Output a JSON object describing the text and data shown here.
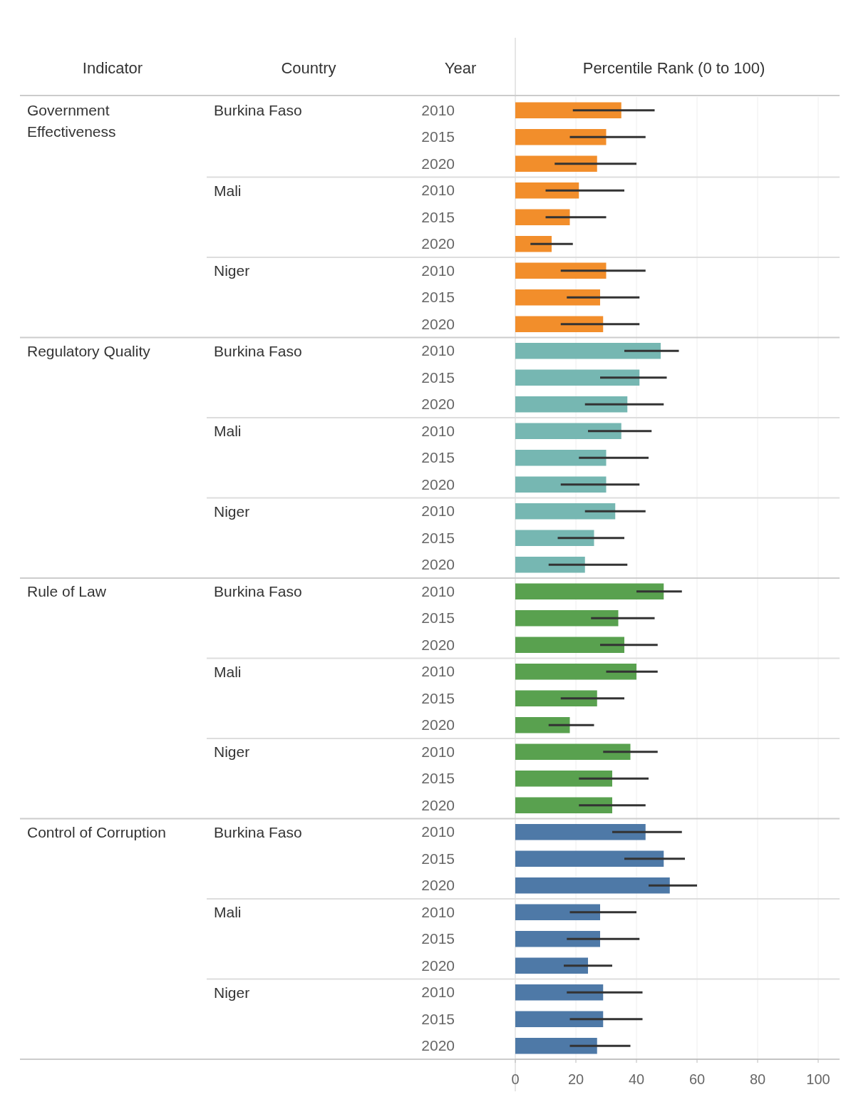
{
  "chart_data": {
    "type": "bar",
    "orientation": "horizontal",
    "xlabel": "Percentile Rank (0 to 100)",
    "annotations": [
      "Indicator",
      "Country",
      "Year",
      "Government Effectiveness",
      "Burkina Faso",
      "Mali",
      "Niger",
      "Regulatory Quality",
      "Burkina Faso",
      "Mali",
      "Niger",
      "Rule of Law",
      "Burkina Faso",
      "Mali",
      "Niger",
      "Control of Corruption",
      "Burkina Faso",
      "Mali",
      "Niger"
    ],
    "categories": [
      "2010",
      "2015",
      "2020",
      "2010",
      "2015",
      "2020",
      "2010",
      "2015",
      "2020",
      "2010",
      "2015",
      "2020",
      "2010",
      "2015",
      "2020",
      "2010",
      "2015",
      "2020",
      "2010",
      "2015",
      "2020",
      "2010",
      "2015",
      "2020",
      "2010",
      "2015",
      "2020",
      "2010",
      "2015",
      "2020",
      "2010",
      "2015",
      "2020",
      "2010",
      "2015",
      "2020"
    ],
    "values": [
      35,
      30,
      27,
      21,
      18,
      12,
      30,
      28,
      29,
      48,
      41,
      37,
      35,
      30,
      30,
      33,
      26,
      23,
      49,
      34,
      36,
      40,
      27,
      18,
      38,
      32,
      32,
      43,
      49,
      51,
      28,
      28,
      24,
      29,
      29,
      27
    ],
    "errors": [
      [
        19,
        46
      ],
      [
        18,
        43
      ],
      [
        13,
        40
      ],
      [
        10,
        36
      ],
      [
        10,
        30
      ],
      [
        5,
        19
      ],
      [
        15,
        43
      ],
      [
        17,
        41
      ],
      [
        15,
        41
      ],
      [
        36,
        54
      ],
      [
        28,
        50
      ],
      [
        23,
        49
      ],
      [
        24,
        45
      ],
      [
        21,
        44
      ],
      [
        15,
        41
      ],
      [
        23,
        43
      ],
      [
        14,
        36
      ],
      [
        11,
        37
      ],
      [
        40,
        55
      ],
      [
        25,
        46
      ],
      [
        28,
        47
      ],
      [
        30,
        47
      ],
      [
        15,
        36
      ],
      [
        11,
        26
      ],
      [
        29,
        47
      ],
      [
        21,
        44
      ],
      [
        21,
        43
      ],
      [
        32,
        55
      ],
      [
        36,
        56
      ],
      [
        44,
        60
      ],
      [
        18,
        40
      ],
      [
        17,
        41
      ],
      [
        16,
        32
      ],
      [
        17,
        42
      ],
      [
        18,
        42
      ],
      [
        18,
        38
      ]
    ],
    "colors": [
      "#f28e2b",
      "#f28e2b",
      "#f28e2b",
      "#f28e2b",
      "#f28e2b",
      "#f28e2b",
      "#f28e2b",
      "#f28e2b",
      "#f28e2b",
      "#76b7b2",
      "#76b7b2",
      "#76b7b2",
      "#76b7b2",
      "#76b7b2",
      "#76b7b2",
      "#76b7b2",
      "#76b7b2",
      "#76b7b2",
      "#59a14f",
      "#59a14f",
      "#59a14f",
      "#59a14f",
      "#59a14f",
      "#59a14f",
      "#59a14f",
      "#59a14f",
      "#59a14f",
      "#4e79a7",
      "#4e79a7",
      "#4e79a7",
      "#4e79a7",
      "#4e79a7",
      "#4e79a7",
      "#4e79a7",
      "#4e79a7",
      "#4e79a7"
    ],
    "xlim": [
      0,
      100
    ],
    "xticks": [
      0,
      20,
      40,
      60,
      80,
      100
    ],
    "grid": "x"
  }
}
